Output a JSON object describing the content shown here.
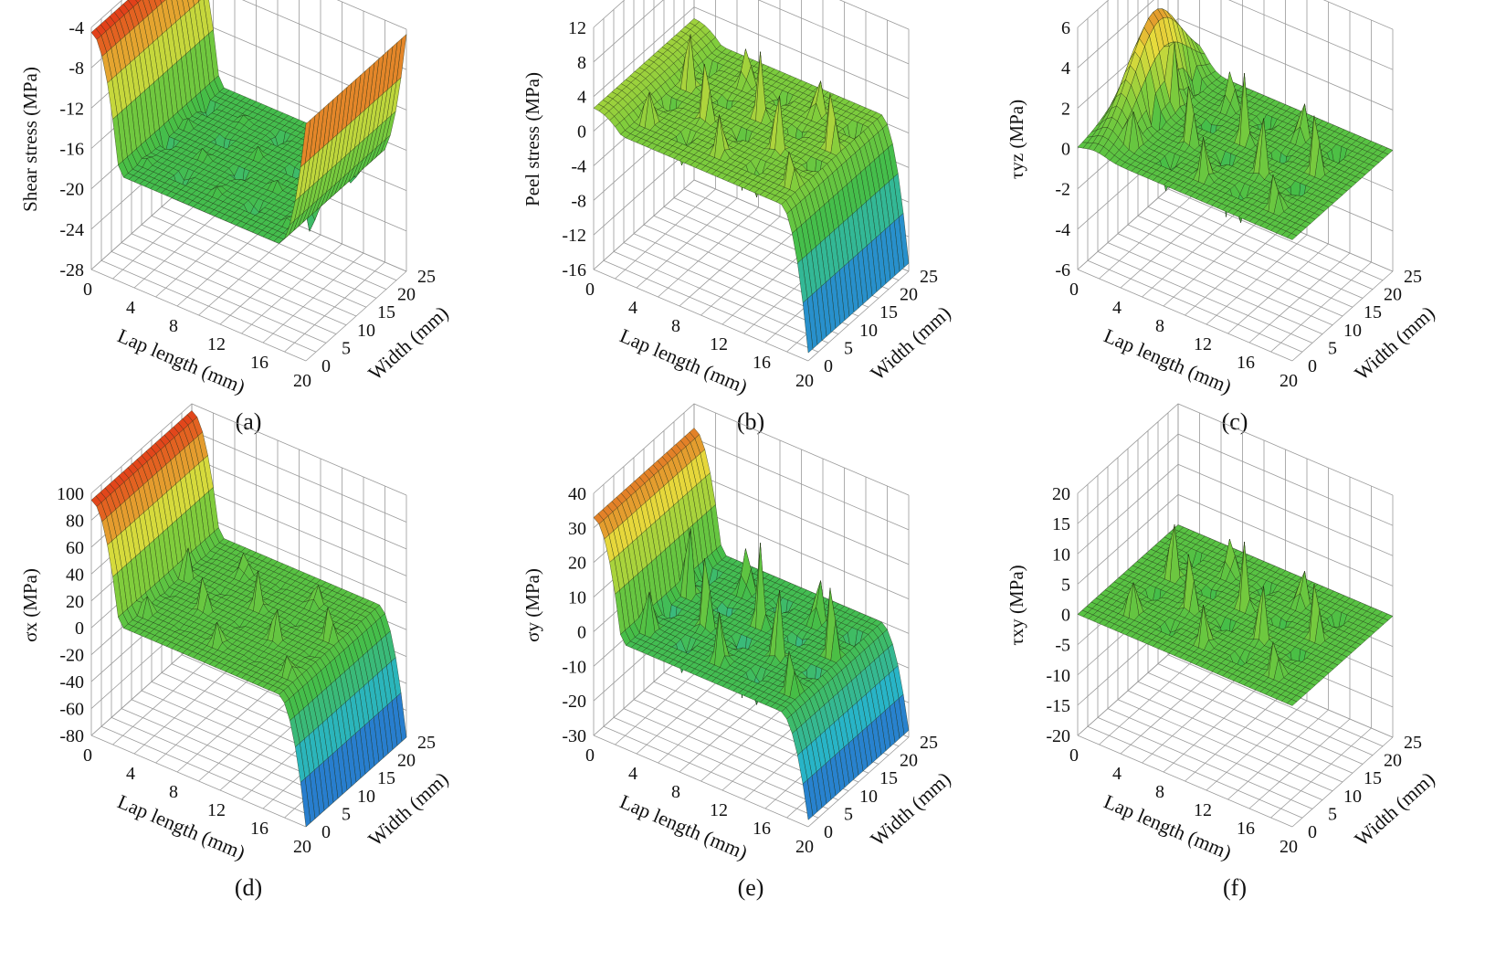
{
  "figure": {
    "panels": [
      {
        "caption": "(a)"
      },
      {
        "caption": "(b)"
      },
      {
        "caption": "(c)"
      },
      {
        "caption": "(d)"
      },
      {
        "caption": "(e)"
      },
      {
        "caption": "(f)"
      }
    ]
  },
  "chart_data": [
    {
      "type": "surface3d",
      "title": "",
      "zlabel": "Shear stress (MPa)",
      "xlabel": "Lap length (mm)",
      "ylabel": "Width (mm)",
      "xticks": [
        "0",
        "4",
        "8",
        "12",
        "16",
        "20"
      ],
      "yticks": [
        "0",
        "5",
        "10",
        "15",
        "20",
        "25"
      ],
      "zticks": [
        "-4",
        "-8",
        "-12",
        "-16",
        "-20",
        "-24",
        "-28"
      ],
      "xlim": [
        0,
        20
      ],
      "ylim": [
        0,
        25
      ],
      "zlim": [
        -28,
        -4
      ],
      "surface": {
        "kind": "shear",
        "left_edge": -4.5,
        "right_edge": -4.5,
        "plateau": -17.5,
        "spike_up": 1.5,
        "spike_down": -6
      }
    },
    {
      "type": "surface3d",
      "title": "",
      "zlabel": "Peel stress (MPa)",
      "xlabel": "Lap length (mm)",
      "ylabel": "Width (mm)",
      "xticks": [
        "0",
        "4",
        "8",
        "12",
        "16",
        "20"
      ],
      "yticks": [
        "0",
        "5",
        "10",
        "15",
        "20",
        "25"
      ],
      "zticks": [
        "12",
        "8",
        "4",
        "0",
        "-4",
        "-8",
        "-12",
        "-16"
      ],
      "xlim": [
        0,
        20
      ],
      "ylim": [
        0,
        25
      ],
      "zlim": [
        -16,
        14
      ],
      "surface": {
        "kind": "peel",
        "left_edge": 4,
        "right_edge": -15,
        "plateau": 2,
        "spike_up": 12,
        "spike_down": -12
      }
    },
    {
      "type": "surface3d",
      "title": "",
      "zlabel": "τyz (MPa)",
      "xlabel": "Lap length (mm)",
      "ylabel": "Width (mm)",
      "xticks": [
        "0",
        "4",
        "8",
        "12",
        "16",
        "20"
      ],
      "yticks": [
        "0",
        "5",
        "10",
        "15",
        "20",
        "25"
      ],
      "zticks": [
        "6",
        "4",
        "2",
        "0",
        "-2",
        "-4",
        "-6"
      ],
      "xlim": [
        0,
        20
      ],
      "ylim": [
        0,
        25
      ],
      "zlim": [
        -6,
        6
      ],
      "surface": {
        "kind": "tauyz",
        "left_edge": 0,
        "right_edge": 0,
        "plateau": 0,
        "spike_up": 5,
        "spike_down": -5
      }
    },
    {
      "type": "surface3d",
      "title": "",
      "zlabel": "σx (MPa)",
      "xlabel": "Lap length (mm)",
      "ylabel": "Width (mm)",
      "xticks": [
        "0",
        "4",
        "8",
        "12",
        "16",
        "20"
      ],
      "yticks": [
        "0",
        "5",
        "10",
        "15",
        "20",
        "25"
      ],
      "zticks": [
        "100",
        "80",
        "60",
        "40",
        "20",
        "0",
        "-20",
        "-40",
        "-60",
        "-80"
      ],
      "xlim": [
        0,
        20
      ],
      "ylim": [
        0,
        25
      ],
      "zlim": [
        -80,
        100
      ],
      "surface": {
        "kind": "sigmax",
        "left_edge": 95,
        "right_edge": -80,
        "plateau": 10,
        "spike_up": 40,
        "spike_down": -5
      }
    },
    {
      "type": "surface3d",
      "title": "",
      "zlabel": "σy (MPa)",
      "xlabel": "Lap length (mm)",
      "ylabel": "Width (mm)",
      "xticks": [
        "0",
        "4",
        "8",
        "12",
        "16",
        "20"
      ],
      "yticks": [
        "0",
        "5",
        "10",
        "15",
        "20",
        "25"
      ],
      "zticks": [
        "40",
        "30",
        "20",
        "10",
        "0",
        "-10",
        "-20",
        "-30"
      ],
      "xlim": [
        0,
        20
      ],
      "ylim": [
        0,
        25
      ],
      "zlim": [
        -30,
        40
      ],
      "surface": {
        "kind": "sigmay",
        "left_edge": 33,
        "right_edge": -28,
        "plateau": 0,
        "spike_up": 35,
        "spike_down": -28
      }
    },
    {
      "type": "surface3d",
      "title": "",
      "zlabel": "τxy (MPa)",
      "xlabel": "Lap length (mm)",
      "ylabel": "Width (mm)",
      "xticks": [
        "0",
        "4",
        "8",
        "12",
        "16",
        "20"
      ],
      "yticks": [
        "0",
        "5",
        "10",
        "15",
        "20",
        "25"
      ],
      "zticks": [
        "20",
        "15",
        "10",
        "5",
        "0",
        "-5",
        "-10",
        "-15",
        "-20"
      ],
      "xlim": [
        0,
        20
      ],
      "ylim": [
        0,
        25
      ],
      "zlim": [
        -20,
        20
      ],
      "surface": {
        "kind": "tauxy",
        "left_edge": 0,
        "right_edge": 0,
        "plateau": 0,
        "spike_up": 16,
        "spike_down": -12
      }
    }
  ]
}
